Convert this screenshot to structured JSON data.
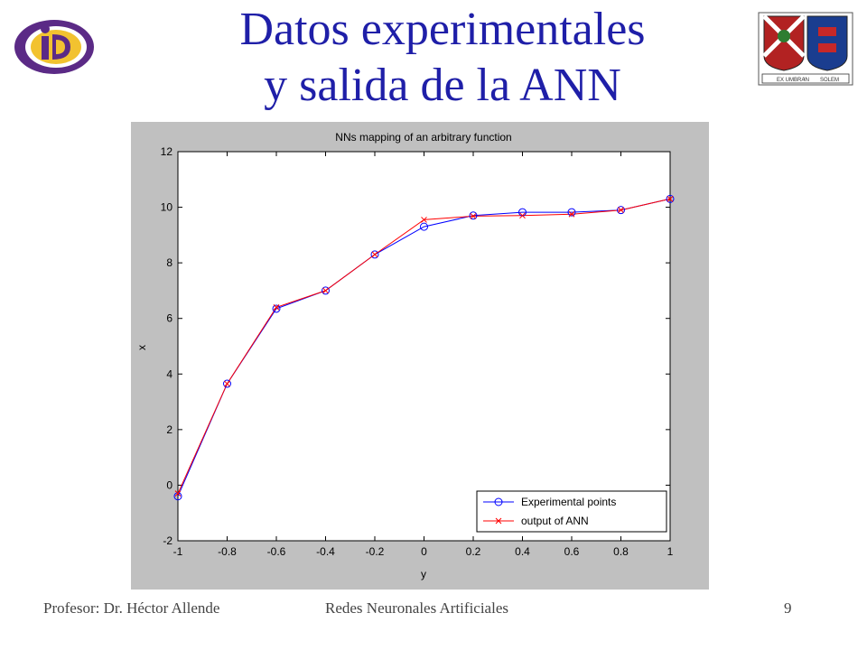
{
  "slide": {
    "title_line1": "Datos experimentales",
    "title_line2": "y salida de la ANN",
    "footer_left": "Profesor: Dr. Héctor Allende",
    "footer_center": "Redes Neuronales Artificiales",
    "page_number": "9",
    "accent_color": "#1f1fa8"
  },
  "logos": {
    "left": {
      "icon": "institute-logo-icon",
      "text": "iD"
    },
    "right": {
      "icon": "university-crest-icon",
      "motto": [
        "EX UMBRA",
        "IN",
        "SOLEM"
      ]
    }
  },
  "chart_data": {
    "type": "line",
    "title": "NNs mapping of an arbitrary function",
    "xlabel": "y",
    "ylabel": "x",
    "xlim": [
      -1,
      1
    ],
    "ylim": [
      -2,
      12
    ],
    "xticks": [
      "-1",
      "-0.8",
      "-0.6",
      "-0.4",
      "-0.2",
      "0",
      "0.2",
      "0.4",
      "0.6",
      "0.8",
      "1"
    ],
    "yticks": [
      "-2",
      "0",
      "2",
      "4",
      "6",
      "8",
      "10",
      "12"
    ],
    "grid": false,
    "legend_position": "bottom-right",
    "x": [
      -1,
      -0.8,
      -0.6,
      -0.4,
      -0.2,
      0,
      0.2,
      0.4,
      0.6,
      0.8,
      1
    ],
    "series": [
      {
        "name": "Experimental points",
        "color": "#0000ff",
        "marker": "circle",
        "values": [
          -0.4,
          3.65,
          6.35,
          7.0,
          8.3,
          9.3,
          9.7,
          9.82,
          9.82,
          9.9,
          10.3
        ]
      },
      {
        "name": "output of ANN",
        "color": "#ff0000",
        "marker": "x",
        "values": [
          -0.3,
          3.65,
          6.4,
          7.0,
          8.3,
          9.55,
          9.68,
          9.7,
          9.75,
          9.9,
          10.3
        ]
      }
    ],
    "colors": {
      "figure_bg": "#c0c0c0",
      "axes_bg": "#ffffff"
    }
  }
}
